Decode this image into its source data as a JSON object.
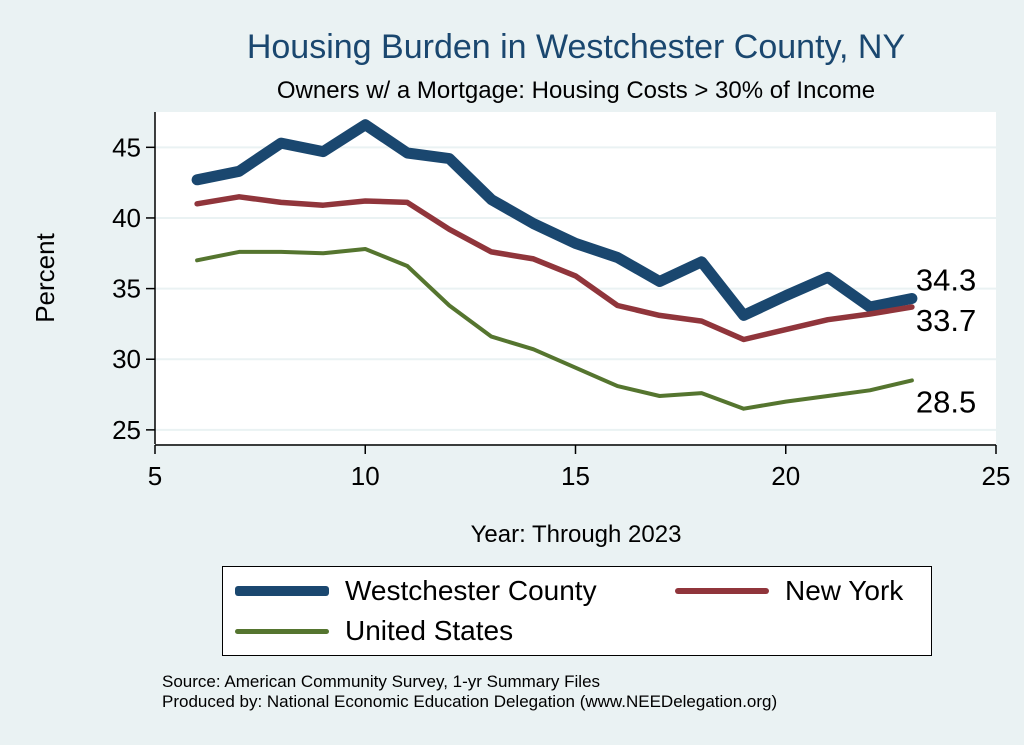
{
  "chart_data": {
    "type": "line",
    "title": "Housing Burden in Westchester County, NY",
    "subtitle": "Owners w/ a Mortgage: Housing Costs > 30% of Income",
    "xlabel": "Year: Through 2023",
    "ylabel": "Percent",
    "xlim": [
      5,
      25
    ],
    "ylim": [
      24,
      47.5
    ],
    "xticks": [
      5,
      10,
      15,
      20,
      25
    ],
    "yticks": [
      25,
      30,
      35,
      40,
      45
    ],
    "grid": true,
    "legend_position": "bottom",
    "series": [
      {
        "name": "Westchester County",
        "color": "#1a476f",
        "x": [
          6,
          7,
          8,
          9,
          10,
          11,
          12,
          13,
          14,
          15,
          16,
          17,
          18,
          19,
          20,
          21,
          22,
          23
        ],
        "values": [
          42.7,
          43.3,
          45.3,
          44.7,
          46.6,
          44.6,
          44.2,
          41.3,
          39.6,
          38.2,
          37.2,
          35.5,
          36.9,
          33.1,
          34.5,
          35.8,
          33.7,
          34.3
        ],
        "end_label": "34.3"
      },
      {
        "name": "New York",
        "color": "#90353b",
        "x": [
          6,
          7,
          8,
          9,
          10,
          11,
          12,
          13,
          14,
          15,
          16,
          17,
          18,
          19,
          20,
          21,
          22,
          23
        ],
        "values": [
          41.0,
          41.5,
          41.1,
          40.9,
          41.2,
          41.1,
          39.2,
          37.6,
          37.1,
          35.9,
          33.8,
          33.1,
          32.7,
          31.4,
          32.1,
          32.8,
          33.2,
          33.7
        ],
        "end_label": "33.7"
      },
      {
        "name": "United States",
        "color": "#55752f",
        "x": [
          6,
          7,
          8,
          9,
          10,
          11,
          12,
          13,
          14,
          15,
          16,
          17,
          18,
          19,
          20,
          21,
          22,
          23
        ],
        "values": [
          37.0,
          37.6,
          37.6,
          37.5,
          37.8,
          36.6,
          33.8,
          31.6,
          30.7,
          29.4,
          28.1,
          27.4,
          27.6,
          26.5,
          27.0,
          27.4,
          27.8,
          28.5
        ],
        "end_label": "28.5"
      }
    ]
  },
  "legend": {
    "items": [
      {
        "label": "Westchester County",
        "color": "#1a476f"
      },
      {
        "label": "New York",
        "color": "#90353b"
      },
      {
        "label": "United States",
        "color": "#55752f"
      }
    ]
  },
  "source": {
    "line1": "Source: American Community Survey, 1-yr Summary Files",
    "line2": "Produced by: National Economic Education Delegation (www.NEEDelegation.org)"
  }
}
